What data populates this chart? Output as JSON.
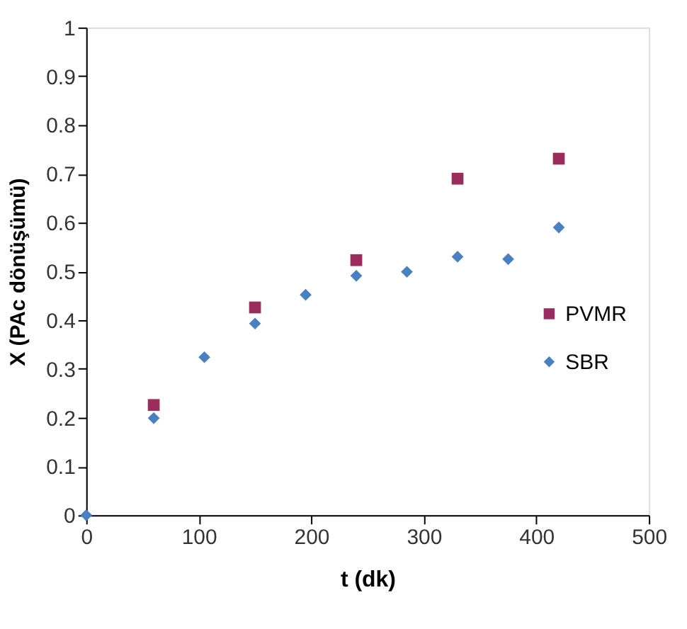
{
  "chart_data": {
    "type": "scatter",
    "xlabel": "t (dk)",
    "ylabel": "X (PAc dönüşümü)",
    "xlim": [
      0,
      500
    ],
    "xticks": [
      0,
      100,
      200,
      300,
      400,
      500
    ],
    "ylim": [
      0,
      1
    ],
    "yticks": [
      0,
      0.1,
      0.2,
      0.3,
      0.4,
      0.5,
      0.6,
      0.7,
      0.8,
      0.9,
      1
    ],
    "grid": false,
    "legend": "right",
    "series": [
      {
        "name": "PVMR",
        "color": "#9b2d5e",
        "marker": "square",
        "x": [
          60,
          150,
          240,
          330,
          420
        ],
        "values": [
          0.226,
          0.426,
          0.523,
          0.69,
          0.731
        ]
      },
      {
        "name": "SBR",
        "color": "#4a7fc1",
        "marker": "diamond",
        "x": [
          0,
          60,
          105,
          150,
          195,
          240,
          285,
          330,
          375,
          420
        ],
        "values": [
          0,
          0.199,
          0.324,
          0.393,
          0.452,
          0.491,
          0.499,
          0.53,
          0.525,
          0.59
        ]
      }
    ]
  }
}
